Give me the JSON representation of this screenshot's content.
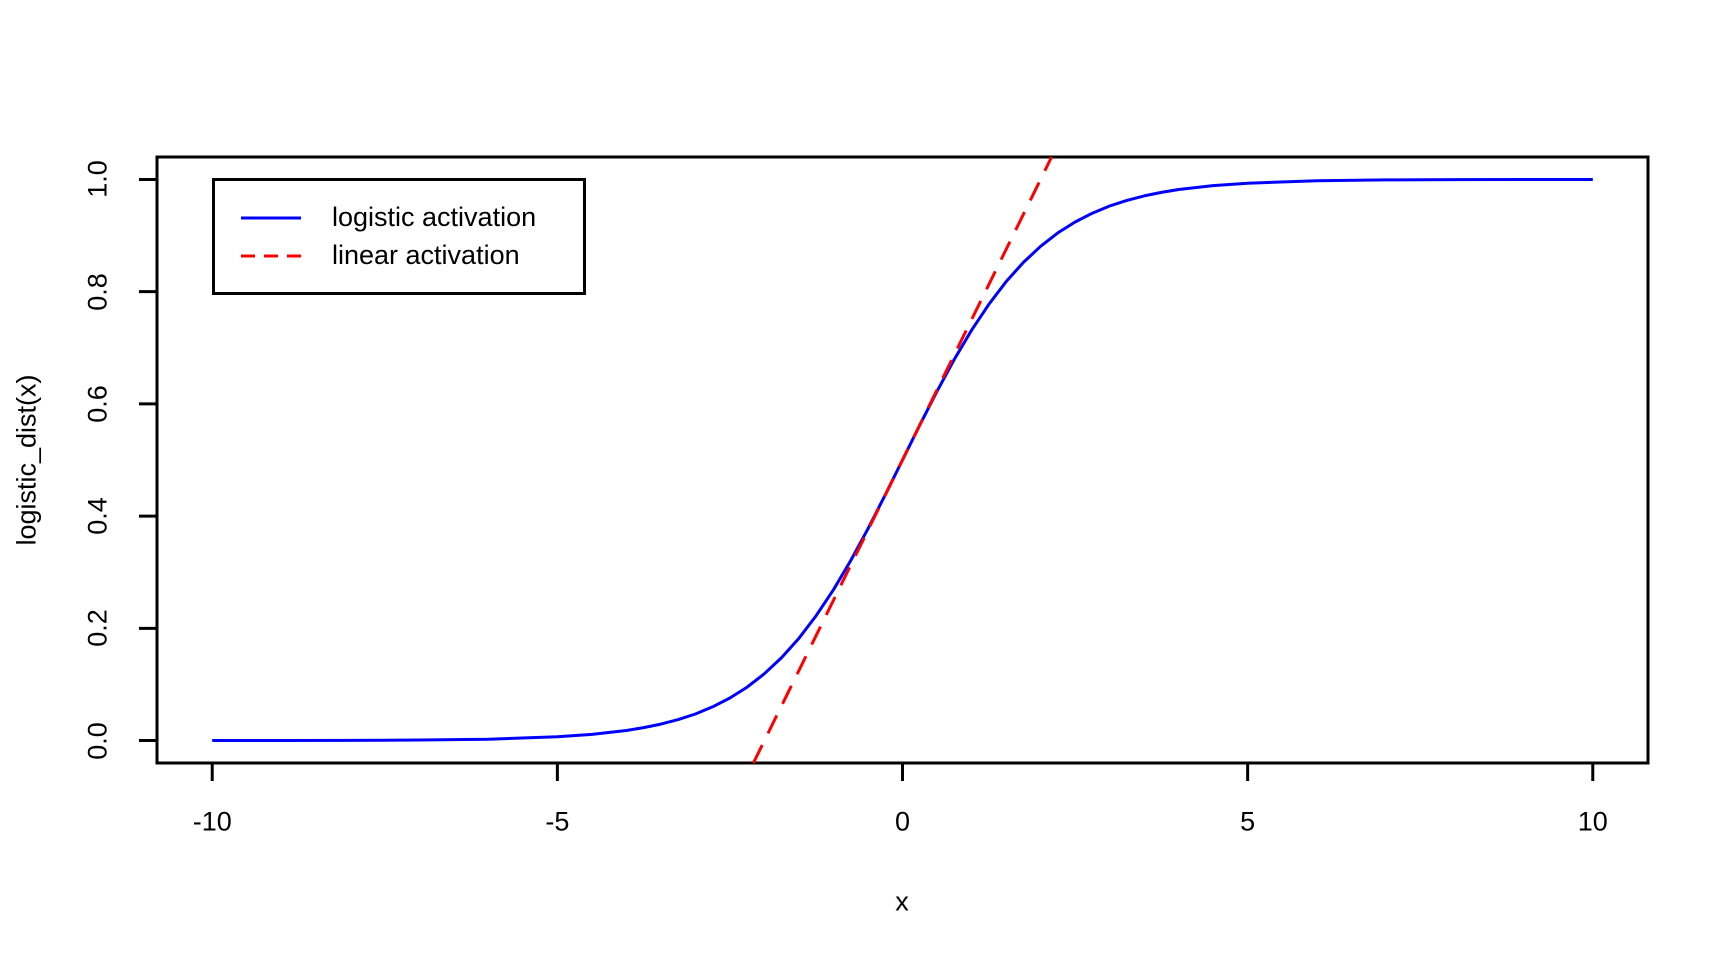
{
  "figure": {
    "background": "#ffffff",
    "frame_color": "#000000"
  },
  "legend": {
    "position": "top-left",
    "items": [
      {
        "label": "logistic activation",
        "line_style": "solid",
        "color": "#0000FF"
      },
      {
        "label": "linear activation",
        "line_style": "dashed",
        "color": "#FF0000"
      }
    ]
  },
  "chart_data": {
    "type": "line",
    "title": "",
    "xlabel": "x",
    "ylabel": "logistic_dist(x)",
    "xlim": [
      -10,
      10
    ],
    "ylim": [
      0,
      1
    ],
    "x_ticks": [
      -10,
      -5,
      0,
      5,
      10
    ],
    "x_tick_labels": [
      "-10",
      "-5",
      "0",
      "5",
      "10"
    ],
    "y_ticks": [
      0,
      0.2,
      0.4,
      0.6,
      0.8,
      1
    ],
    "y_tick_labels": [
      "0.0",
      "0.2",
      "0.4",
      "0.6",
      "0.8",
      "1.0"
    ],
    "grid": false,
    "legend_position": "top-left",
    "series": [
      {
        "name": "logistic activation",
        "type": "line",
        "style": "solid",
        "color": "#0000FF",
        "x": [
          -10,
          -9,
          -8,
          -7,
          -6,
          -5,
          -4.5,
          -4,
          -3.75,
          -3.5,
          -3.25,
          -3,
          -2.75,
          -2.5,
          -2.25,
          -2,
          -1.75,
          -1.5,
          -1.25,
          -1,
          -0.75,
          -0.5,
          -0.25,
          0,
          0.25,
          0.5,
          0.75,
          1,
          1.25,
          1.5,
          1.75,
          2,
          2.25,
          2.5,
          2.75,
          3,
          3.25,
          3.5,
          3.75,
          4,
          4.5,
          5,
          6,
          7,
          8,
          9,
          10
        ],
        "y": [
          4.54e-05,
          0.000123,
          0.000335,
          0.000911,
          0.00247,
          0.00669,
          0.011,
          0.018,
          0.023,
          0.0293,
          0.0374,
          0.0474,
          0.0601,
          0.0759,
          0.0953,
          0.1192,
          0.148,
          0.1824,
          0.2227,
          0.2689,
          0.3208,
          0.3775,
          0.4378,
          0.5,
          0.5622,
          0.6225,
          0.6792,
          0.7311,
          0.7773,
          0.8176,
          0.852,
          0.8808,
          0.9047,
          0.9241,
          0.9399,
          0.9526,
          0.9626,
          0.9707,
          0.977,
          0.982,
          0.989,
          0.9933,
          0.9975,
          0.9991,
          0.9997,
          0.9999,
          0.99995
        ]
      },
      {
        "name": "linear activation",
        "type": "line",
        "style": "dashed",
        "color": "#FF0000",
        "x": [
          -2.16,
          2.16
        ],
        "y": [
          -0.04,
          1.04
        ]
      }
    ]
  }
}
